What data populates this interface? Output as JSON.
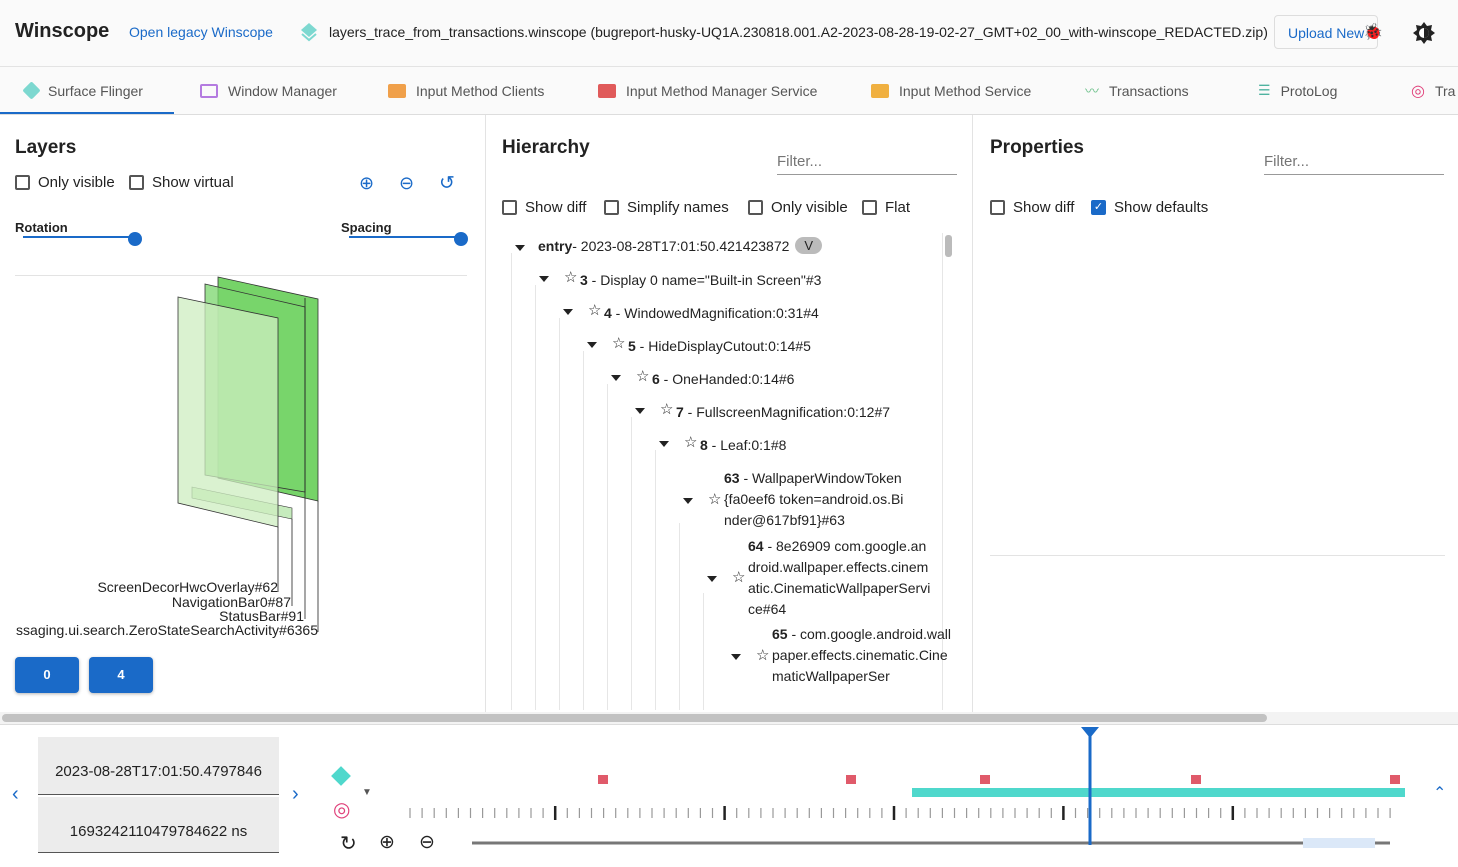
{
  "header": {
    "title": "Winscope",
    "legacy_link": "Open legacy Winscope",
    "file_name": "layers_trace_from_transactions.winscope (bugreport-husky-UQ1A.230818.001.A2-2023-08-28-19-02-27_GMT+02_00_with-winscope_REDACTED.zip)",
    "upload_label": "Upload New"
  },
  "tabs": [
    {
      "label": "Surface Flinger",
      "icon": "layers-icon",
      "color": "#7dd8d0",
      "active": true
    },
    {
      "label": "Window Manager",
      "icon": "window-icon",
      "color": "#b47be0"
    },
    {
      "label": "Input Method Clients",
      "icon": "keyboard-icon",
      "color": "#f0a04a"
    },
    {
      "label": "Input Method Manager Service",
      "icon": "keyboard-icon",
      "color": "#e05a5a"
    },
    {
      "label": "Input Method Service",
      "icon": "keyboard-icon",
      "color": "#f0b040"
    },
    {
      "label": "Transactions",
      "icon": "timeline-icon",
      "color": "#6cc08a"
    },
    {
      "label": "ProtoLog",
      "icon": "list-icon",
      "color": "#4fb3a0"
    },
    {
      "label": "Tra",
      "icon": "rings-icon",
      "color": "#e0407a"
    }
  ],
  "layers": {
    "title": "Layers",
    "only_visible": "Only visible",
    "show_virtual": "Show virtual",
    "rotation": "Rotation",
    "spacing": "Spacing",
    "rotation_value": 1.0,
    "spacing_value": 1.0,
    "labels": [
      "ScreenDecorHwcOverlay#62",
      "NavigationBar0#87",
      "StatusBar#91",
      "ssaging.ui.search.ZeroStateSearchActivity#6365"
    ],
    "display_buttons": [
      "0",
      "4"
    ]
  },
  "hierarchy": {
    "title": "Hierarchy",
    "filter_placeholder": "Filter...",
    "options": [
      "Show diff",
      "Simplify names",
      "Only visible",
      "Flat"
    ],
    "entry": {
      "label": "entry",
      "value": " - 2023-08-28T17:01:50.421423872",
      "badge": "V"
    },
    "nodes": [
      {
        "id": "3",
        "name": " - Display 0 name=\"Built-in Screen\"#3"
      },
      {
        "id": "4",
        "name": " - WindowedMagnification:0:31#4"
      },
      {
        "id": "5",
        "name": " - HideDisplayCutout:0:14#5"
      },
      {
        "id": "6",
        "name": " - OneHanded:0:14#6"
      },
      {
        "id": "7",
        "name": " - FullscreenMagnification:0:12#7"
      },
      {
        "id": "8",
        "name": " - Leaf:0:1#8"
      },
      {
        "id": "63",
        "name": " - WallpaperWindowToken{fa0eef6 token=android.os.Binder@617bf91}#63"
      },
      {
        "id": "64",
        "name": " - 8e26909 com.google.android.wallpaper.effects.cinematic.CinematicWallpaperService#64"
      },
      {
        "id": "65",
        "name": " - com.google.android.wallpaper.effects.cinematic.CinematicWallpaperSer"
      }
    ]
  },
  "properties": {
    "title": "Properties",
    "filter_placeholder": "Filter...",
    "show_diff": "Show diff",
    "show_defaults": "Show defaults",
    "show_defaults_checked": true
  },
  "timeline": {
    "timestamp": "2023-08-28T17:01:50.4797846",
    "ns": "1693242110479784622 ns",
    "accent": "#1a6ac8",
    "transactions_color": "#4fd8cc",
    "protolog_color": "#e05a6a"
  }
}
